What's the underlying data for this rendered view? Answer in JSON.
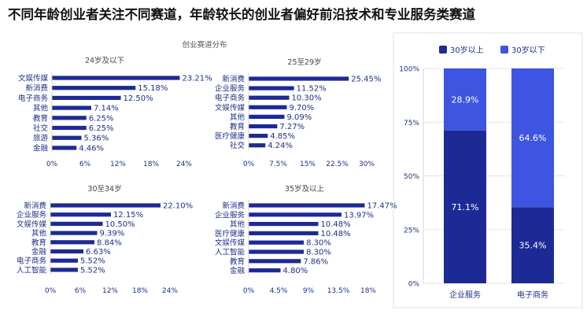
{
  "headline": "不同年龄创业者关注不同赛道，年龄较长的创业者偏好前沿技术和专业服务类赛道",
  "panel_title": "创业赛道分布",
  "colors": {
    "bar": "#1d2a96",
    "dark": "#1d2a96",
    "light": "#3d55e0",
    "grid": "#dddddd"
  },
  "chart_data": [
    {
      "type": "bar",
      "orientation": "horizontal",
      "title": "24岁及以下",
      "categories": [
        "文娱传媒",
        "新消费",
        "电子商务",
        "其他",
        "教育",
        "社交",
        "旅游",
        "金融"
      ],
      "values": [
        23.21,
        15.18,
        12.5,
        7.14,
        6.25,
        6.25,
        5.36,
        4.46
      ],
      "value_labels": [
        "23.21%",
        "15.18%",
        "12.50%",
        "7.14%",
        "6.25%",
        "6.25%",
        "5.36%",
        "4.46%"
      ],
      "xlim": [
        0,
        24
      ],
      "xticks": [
        "0%",
        "6%",
        "12%",
        "18%",
        "24%"
      ]
    },
    {
      "type": "bar",
      "orientation": "horizontal",
      "title": "25至29岁",
      "categories": [
        "新消费",
        "企业服务",
        "电子商务",
        "文娱传媒",
        "其他",
        "教育",
        "医疗健康",
        "社交"
      ],
      "values": [
        25.45,
        11.52,
        10.3,
        9.7,
        9.09,
        7.27,
        4.85,
        4.24
      ],
      "value_labels": [
        "25.45%",
        "11.52%",
        "10.30%",
        "9.70%",
        "9.09%",
        "7.27%",
        "4.85%",
        "4.24%"
      ],
      "xlim": [
        0,
        30
      ],
      "xticks": [
        "0%",
        "7.5%",
        "15%",
        "22.5%",
        "30%"
      ]
    },
    {
      "type": "bar",
      "orientation": "horizontal",
      "title": "30至34岁",
      "categories": [
        "新消费",
        "企业服务",
        "文娱传媒",
        "其他",
        "教育",
        "金融",
        "电子商务",
        "人工智能"
      ],
      "values": [
        22.1,
        12.15,
        10.5,
        9.39,
        8.84,
        6.63,
        5.52,
        5.52
      ],
      "value_labels": [
        "22.10%",
        "12.15%",
        "10.50%",
        "9.39%",
        "8.84%",
        "6.63%",
        "5.52%",
        "5.52%"
      ],
      "xlim": [
        0,
        24
      ],
      "xticks": [
        "0%",
        "6%",
        "12%",
        "18%",
        "24%"
      ]
    },
    {
      "type": "bar",
      "orientation": "horizontal",
      "title": "35岁及以上",
      "categories": [
        "新消费",
        "企业服务",
        "其他",
        "医疗健康",
        "文娱传媒",
        "人工智能",
        "教育",
        "金融"
      ],
      "values": [
        17.47,
        13.97,
        10.48,
        10.48,
        8.3,
        8.3,
        7.86,
        4.8
      ],
      "value_labels": [
        "17.47%",
        "13.97%",
        "10.48%",
        "10.48%",
        "8.30%",
        "8.30%",
        "7.86%",
        "4.80%"
      ],
      "xlim": [
        0,
        18
      ],
      "xticks": [
        "0%",
        "4.5%",
        "9%",
        "13.5%",
        "18%"
      ]
    },
    {
      "type": "bar",
      "stacked": true,
      "categories": [
        "企业服务",
        "电子商务"
      ],
      "series": [
        {
          "name": "30岁以上",
          "values": [
            71.1,
            35.4
          ],
          "labels": [
            "71.1%",
            "35.4%"
          ],
          "color": "#1d2a96"
        },
        {
          "name": "30岁以下",
          "values": [
            28.9,
            64.6
          ],
          "labels": [
            "28.9%",
            "64.6%"
          ],
          "color": "#3d55e0"
        }
      ],
      "ylim": [
        0,
        100
      ],
      "yticks": [
        "0%",
        "25%",
        "50%",
        "75%",
        "100%"
      ],
      "legend": "top"
    }
  ]
}
